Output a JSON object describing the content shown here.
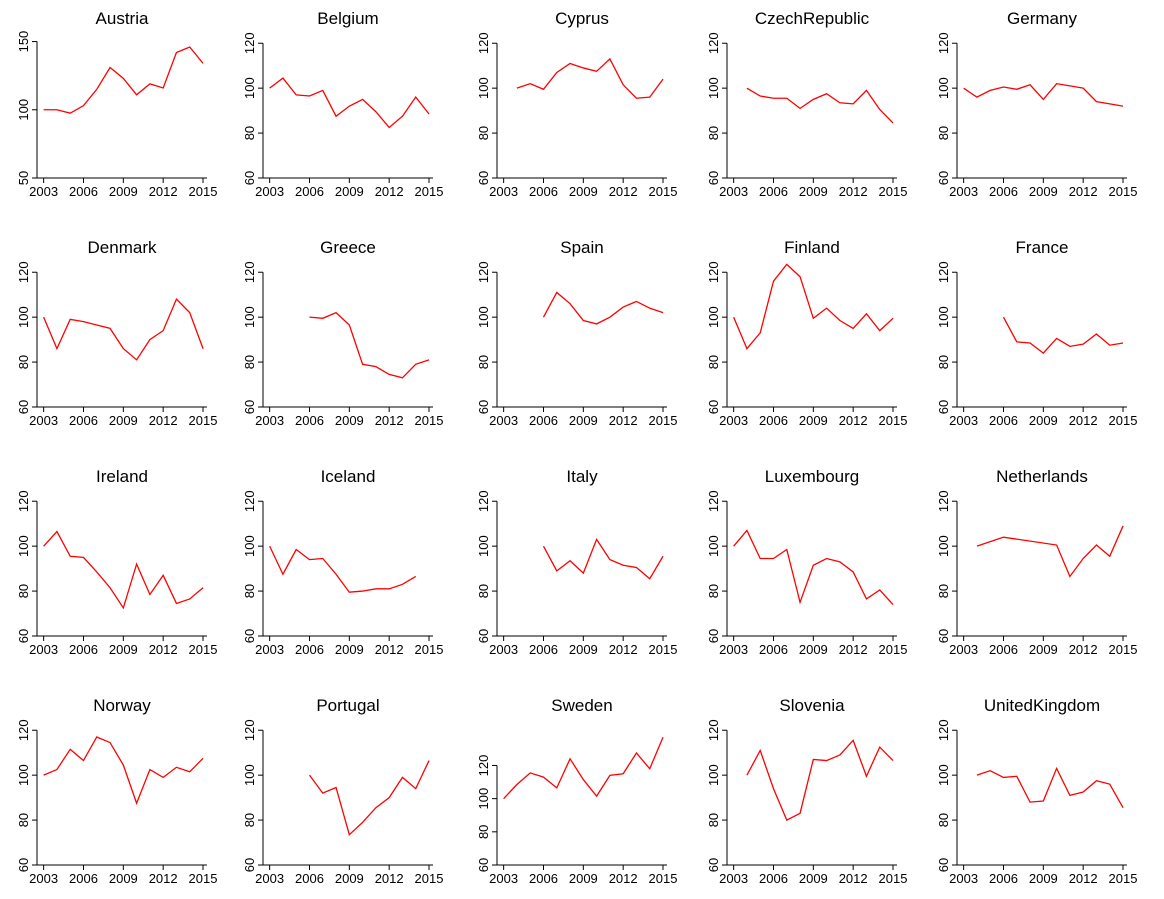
{
  "chart_data": [
    {
      "type": "line",
      "title": "Austria",
      "x": [
        2003,
        2004,
        2005,
        2006,
        2007,
        2008,
        2009,
        2010,
        2011,
        2012,
        2013,
        2014,
        2015
      ],
      "values": [
        100,
        100,
        97.5,
        103,
        115,
        131,
        123,
        111,
        119,
        116,
        142,
        146,
        134
      ],
      "color": "#ff0000",
      "xlim": [
        2002.5,
        2015.3
      ],
      "xticks": [
        2003,
        2006,
        2009,
        2012,
        2015
      ],
      "ylim": [
        50,
        157
      ],
      "yticks": [
        50,
        100,
        150
      ]
    },
    {
      "type": "line",
      "title": "Belgium",
      "x": [
        2003,
        2004,
        2005,
        2006,
        2007,
        2008,
        2009,
        2010,
        2011,
        2012,
        2013,
        2014,
        2015
      ],
      "values": [
        100,
        104.5,
        97,
        96.5,
        99,
        87.5,
        92,
        95,
        89.5,
        82.5,
        87.5,
        96,
        88.5
      ],
      "color": "#ff0000",
      "xlim": [
        2002.5,
        2015.3
      ],
      "xticks": [
        2003,
        2006,
        2009,
        2012,
        2015
      ],
      "ylim": [
        60,
        125
      ],
      "yticks": [
        60,
        80,
        100,
        120
      ]
    },
    {
      "type": "line",
      "title": "Cyprus",
      "x": [
        2004,
        2005,
        2006,
        2007,
        2008,
        2009,
        2010,
        2011,
        2012,
        2013,
        2014,
        2015
      ],
      "values": [
        100,
        102,
        99.5,
        107,
        111,
        109,
        107.5,
        113,
        101.5,
        95.5,
        96,
        104
      ],
      "color": "#ff0000",
      "xlim": [
        2002.5,
        2015.3
      ],
      "xticks": [
        2003,
        2006,
        2009,
        2012,
        2015
      ],
      "ylim": [
        60,
        125
      ],
      "yticks": [
        60,
        80,
        100,
        120
      ]
    },
    {
      "type": "line",
      "title": "CzechRepublic",
      "x": [
        2004,
        2005,
        2006,
        2007,
        2008,
        2009,
        2010,
        2011,
        2012,
        2013,
        2014,
        2015
      ],
      "values": [
        100,
        96.5,
        95.5,
        95.5,
        91,
        95,
        97.5,
        93.5,
        93,
        99,
        90.5,
        84.5
      ],
      "color": "#ff0000",
      "xlim": [
        2002.5,
        2015.3
      ],
      "xticks": [
        2003,
        2006,
        2009,
        2012,
        2015
      ],
      "ylim": [
        60,
        125
      ],
      "yticks": [
        60,
        80,
        100,
        120
      ]
    },
    {
      "type": "line",
      "title": "Germany",
      "x": [
        2003,
        2004,
        2005,
        2006,
        2007,
        2008,
        2009,
        2010,
        2011,
        2012,
        2013,
        2014,
        2015
      ],
      "values": [
        100,
        96,
        99,
        100.5,
        99.5,
        101.5,
        95,
        102,
        101,
        100,
        94,
        93,
        92
      ],
      "color": "#ff0000",
      "xlim": [
        2002.5,
        2015.3
      ],
      "xticks": [
        2003,
        2006,
        2009,
        2012,
        2015
      ],
      "ylim": [
        60,
        125
      ],
      "yticks": [
        60,
        80,
        100,
        120
      ]
    },
    {
      "type": "line",
      "title": "Denmark",
      "x": [
        2003,
        2004,
        2005,
        2006,
        2007,
        2008,
        2009,
        2010,
        2011,
        2012,
        2013,
        2014,
        2015
      ],
      "values": [
        100,
        86,
        99,
        98,
        96.5,
        95,
        86,
        81,
        90,
        94,
        108,
        102,
        86
      ],
      "color": "#ff0000",
      "xlim": [
        2002.5,
        2015.3
      ],
      "xticks": [
        2003,
        2006,
        2009,
        2012,
        2015
      ],
      "ylim": [
        60,
        125
      ],
      "yticks": [
        60,
        80,
        100,
        120
      ]
    },
    {
      "type": "line",
      "title": "Greece",
      "x": [
        2006,
        2007,
        2008,
        2009,
        2010,
        2011,
        2012,
        2013,
        2014,
        2015
      ],
      "values": [
        100,
        99.5,
        102,
        96.5,
        79,
        78,
        74.5,
        73,
        79,
        81
      ],
      "color": "#ff0000",
      "xlim": [
        2002.5,
        2015.3
      ],
      "xticks": [
        2003,
        2006,
        2009,
        2012,
        2015
      ],
      "ylim": [
        60,
        125
      ],
      "yticks": [
        60,
        80,
        100,
        120
      ]
    },
    {
      "type": "line",
      "title": "Spain",
      "x": [
        2006,
        2007,
        2008,
        2009,
        2010,
        2011,
        2012,
        2013,
        2014,
        2015
      ],
      "values": [
        100,
        111,
        106,
        98.5,
        97,
        100,
        104.5,
        107,
        104,
        102
      ],
      "color": "#ff0000",
      "xlim": [
        2002.5,
        2015.3
      ],
      "xticks": [
        2003,
        2006,
        2009,
        2012,
        2015
      ],
      "ylim": [
        60,
        125
      ],
      "yticks": [
        60,
        80,
        100,
        120
      ]
    },
    {
      "type": "line",
      "title": "Finland",
      "x": [
        2003,
        2004,
        2005,
        2006,
        2007,
        2008,
        2009,
        2010,
        2011,
        2012,
        2013,
        2014,
        2015
      ],
      "values": [
        100,
        86,
        93,
        116,
        123.5,
        118,
        99.5,
        104,
        98.5,
        95,
        101.5,
        94,
        99.5
      ],
      "color": "#ff0000",
      "xlim": [
        2002.5,
        2015.3
      ],
      "xticks": [
        2003,
        2006,
        2009,
        2012,
        2015
      ],
      "ylim": [
        60,
        125
      ],
      "yticks": [
        60,
        80,
        100,
        120
      ]
    },
    {
      "type": "line",
      "title": "France",
      "x": [
        2006,
        2007,
        2008,
        2009,
        2010,
        2011,
        2012,
        2013,
        2014,
        2015
      ],
      "values": [
        100,
        89,
        88.5,
        84,
        90.5,
        87,
        88,
        92.5,
        87.5,
        88.5
      ],
      "color": "#ff0000",
      "xlim": [
        2002.5,
        2015.3
      ],
      "xticks": [
        2003,
        2006,
        2009,
        2012,
        2015
      ],
      "ylim": [
        60,
        125
      ],
      "yticks": [
        60,
        80,
        100,
        120
      ]
    },
    {
      "type": "line",
      "title": "Ireland",
      "x": [
        2003,
        2004,
        2005,
        2006,
        2007,
        2008,
        2009,
        2010,
        2011,
        2012,
        2013,
        2014,
        2015
      ],
      "values": [
        100,
        106.5,
        95.5,
        95,
        88.5,
        81.5,
        72.5,
        92,
        78.5,
        87,
        74.5,
        76.5,
        81.5
      ],
      "color": "#ff0000",
      "xlim": [
        2002.5,
        2015.3
      ],
      "xticks": [
        2003,
        2006,
        2009,
        2012,
        2015
      ],
      "ylim": [
        60,
        125
      ],
      "yticks": [
        60,
        80,
        100,
        120
      ]
    },
    {
      "type": "line",
      "title": "Iceland",
      "x": [
        2003,
        2004,
        2005,
        2006,
        2007,
        2008,
        2009,
        2010,
        2011,
        2012,
        2013,
        2014
      ],
      "values": [
        100,
        87.5,
        98.5,
        94,
        94.5,
        87.5,
        79.5,
        80,
        81,
        81,
        83,
        86.5
      ],
      "color": "#ff0000",
      "xlim": [
        2002.5,
        2015.3
      ],
      "xticks": [
        2003,
        2006,
        2009,
        2012,
        2015
      ],
      "ylim": [
        60,
        125
      ],
      "yticks": [
        60,
        80,
        100,
        120
      ]
    },
    {
      "type": "line",
      "title": "Italy",
      "x": [
        2006,
        2007,
        2008,
        2009,
        2010,
        2011,
        2012,
        2013,
        2014,
        2015
      ],
      "values": [
        100,
        89,
        93.5,
        88,
        103,
        94,
        91.5,
        90.5,
        85.5,
        95.5
      ],
      "color": "#ff0000",
      "xlim": [
        2002.5,
        2015.3
      ],
      "xticks": [
        2003,
        2006,
        2009,
        2012,
        2015
      ],
      "ylim": [
        60,
        125
      ],
      "yticks": [
        60,
        80,
        100,
        120
      ]
    },
    {
      "type": "line",
      "title": "Luxembourg",
      "x": [
        2003,
        2004,
        2005,
        2006,
        2007,
        2008,
        2009,
        2010,
        2011,
        2012,
        2013,
        2014,
        2015
      ],
      "values": [
        100,
        107,
        94.5,
        94.5,
        98.5,
        75,
        91.5,
        94.5,
        93,
        88.5,
        76.5,
        80.5,
        74
      ],
      "color": "#ff0000",
      "xlim": [
        2002.5,
        2015.3
      ],
      "xticks": [
        2003,
        2006,
        2009,
        2012,
        2015
      ],
      "ylim": [
        60,
        125
      ],
      "yticks": [
        60,
        80,
        100,
        120
      ]
    },
    {
      "type": "line",
      "title": "Netherlands",
      "x": [
        2004,
        2006,
        2010,
        2011,
        2012,
        2013,
        2014,
        2015
      ],
      "values": [
        100,
        104,
        100.5,
        86.5,
        94.5,
        100.5,
        95.5,
        109
      ],
      "color": "#ff0000",
      "xlim": [
        2002.5,
        2015.3
      ],
      "xticks": [
        2003,
        2006,
        2009,
        2012,
        2015
      ],
      "ylim": [
        60,
        125
      ],
      "yticks": [
        60,
        80,
        100,
        120
      ]
    },
    {
      "type": "line",
      "title": "Norway",
      "x": [
        2003,
        2004,
        2005,
        2006,
        2007,
        2008,
        2009,
        2010,
        2011,
        2012,
        2013,
        2014,
        2015
      ],
      "values": [
        100,
        102.5,
        111.5,
        106.5,
        117,
        114.5,
        104.5,
        87.5,
        102.5,
        99,
        103.5,
        101.5,
        107.5
      ],
      "color": "#ff0000",
      "xlim": [
        2002.5,
        2015.3
      ],
      "xticks": [
        2003,
        2006,
        2009,
        2012,
        2015
      ],
      "ylim": [
        60,
        125
      ],
      "yticks": [
        60,
        80,
        100,
        120
      ]
    },
    {
      "type": "line",
      "title": "Portugal",
      "x": [
        2006,
        2007,
        2008,
        2009,
        2010,
        2011,
        2012,
        2013,
        2014,
        2015
      ],
      "values": [
        100,
        92,
        94.5,
        73.5,
        79,
        85.5,
        90,
        99,
        94,
        106.5
      ],
      "color": "#ff0000",
      "xlim": [
        2002.5,
        2015.3
      ],
      "xticks": [
        2003,
        2006,
        2009,
        2012,
        2015
      ],
      "ylim": [
        60,
        125
      ],
      "yticks": [
        60,
        80,
        100,
        120
      ]
    },
    {
      "type": "line",
      "title": "Sweden",
      "x": [
        2003,
        2004,
        2005,
        2006,
        2007,
        2008,
        2009,
        2010,
        2011,
        2012,
        2013,
        2014,
        2015
      ],
      "values": [
        100,
        108.5,
        115.5,
        113,
        106.5,
        124,
        111.5,
        101.5,
        114,
        115,
        127.5,
        118,
        137
      ],
      "color": "#ff0000",
      "xlim": [
        2002.5,
        2015.3
      ],
      "xticks": [
        2003,
        2006,
        2009,
        2012,
        2015
      ],
      "ylim": [
        60,
        148
      ],
      "yticks": [
        60,
        80,
        100,
        120
      ]
    },
    {
      "type": "line",
      "title": "Slovenia",
      "x": [
        2004,
        2005,
        2006,
        2007,
        2008,
        2009,
        2010,
        2011,
        2012,
        2013,
        2014,
        2015
      ],
      "values": [
        100,
        111,
        94,
        80,
        83,
        107,
        106.5,
        109,
        115.5,
        99.5,
        112.5,
        106.5
      ],
      "color": "#ff0000",
      "xlim": [
        2002.5,
        2015.3
      ],
      "xticks": [
        2003,
        2006,
        2009,
        2012,
        2015
      ],
      "ylim": [
        60,
        125
      ],
      "yticks": [
        60,
        80,
        100,
        120
      ]
    },
    {
      "type": "line",
      "title": "UnitedKingdom",
      "x": [
        2004,
        2005,
        2006,
        2007,
        2008,
        2009,
        2010,
        2011,
        2012,
        2013,
        2014,
        2015
      ],
      "values": [
        100,
        102,
        99,
        99.5,
        88,
        88.5,
        103,
        91,
        92.5,
        97.5,
        96,
        85.5
      ],
      "color": "#ff0000",
      "xlim": [
        2002.5,
        2015.3
      ],
      "xticks": [
        2003,
        2006,
        2009,
        2012,
        2015
      ],
      "ylim": [
        60,
        125
      ],
      "yticks": [
        60,
        80,
        100,
        120
      ]
    }
  ]
}
